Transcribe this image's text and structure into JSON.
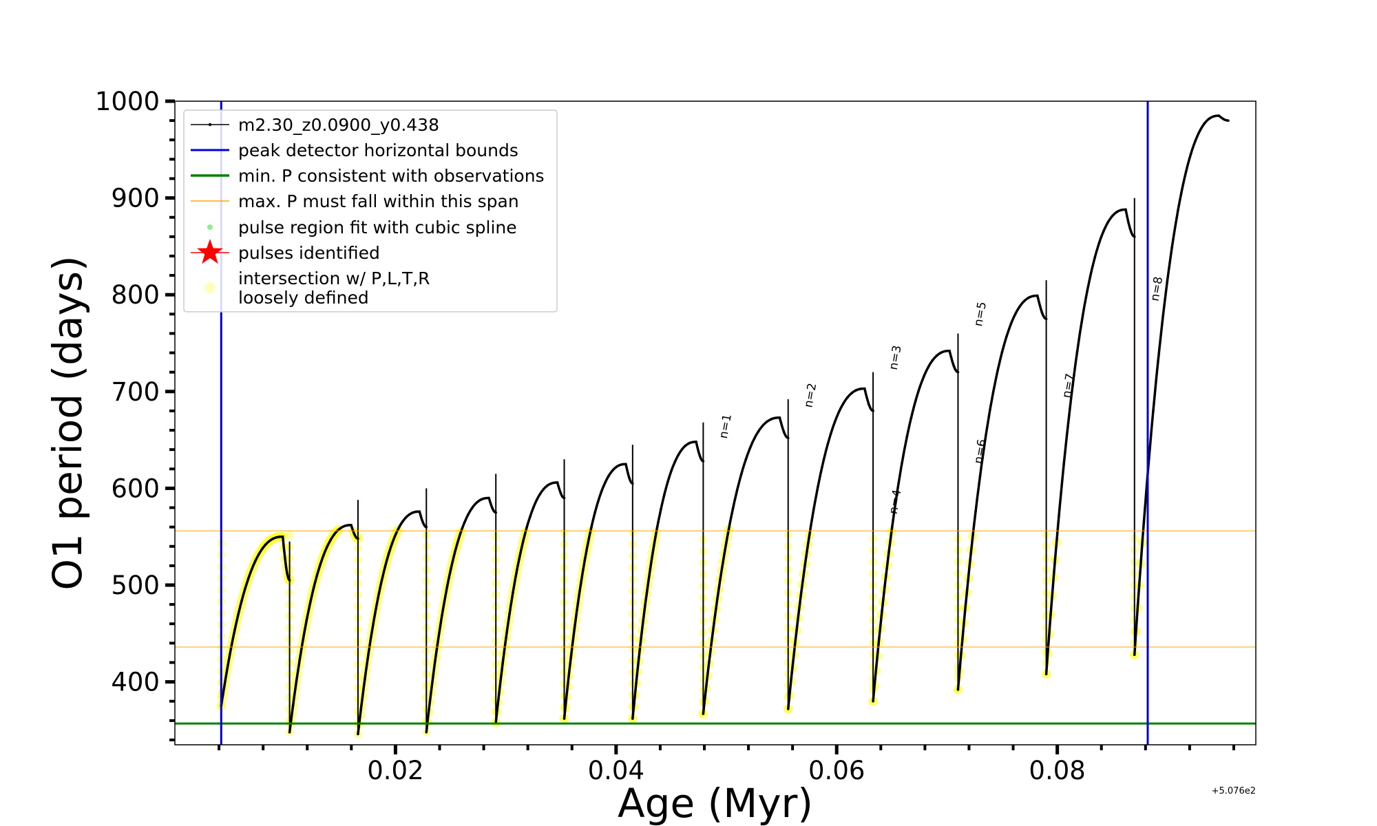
{
  "chart_data": {
    "type": "line",
    "xlabel": "Age (Myr)",
    "ylabel": "O1 period (days)",
    "x_offset_label": "+5.076e2",
    "xlim": [
      0.0,
      0.098
    ],
    "ylim": [
      335,
      1000
    ],
    "x_ticks": [
      {
        "value": 0.02,
        "label": "0.02"
      },
      {
        "value": 0.04,
        "label": "0.04"
      },
      {
        "value": 0.06,
        "label": "0.06"
      },
      {
        "value": 0.08,
        "label": "0.08"
      }
    ],
    "y_ticks": [
      {
        "value": 400,
        "label": "400"
      },
      {
        "value": 500,
        "label": "500"
      },
      {
        "value": 600,
        "label": "600"
      },
      {
        "value": 700,
        "label": "700"
      },
      {
        "value": 800,
        "label": "800"
      },
      {
        "value": 900,
        "label": "900"
      },
      {
        "value": 1000,
        "label": "1000"
      }
    ],
    "legend": {
      "position": "upper-left",
      "entries": [
        {
          "label": "m2.30_z0.0900_y0.438",
          "style": "black-line-dots"
        },
        {
          "label": "peak detector horizontal bounds",
          "style": "blue-line"
        },
        {
          "label": "min. P consistent with observations",
          "style": "green-line"
        },
        {
          "label": "max. P must fall within this span",
          "style": "orange-line"
        },
        {
          "label": "pulse region fit with cubic spline",
          "style": "green-dot"
        },
        {
          "label": "pulses identified",
          "style": "red-star"
        },
        {
          "label": "intersection w/ P,L,T,R",
          "label2": "loosely defined",
          "style": "yellow-dot"
        }
      ]
    },
    "vertical_lines": [
      {
        "x": 0.0042,
        "color": "#0000dd"
      },
      {
        "x": 0.0882,
        "color": "#0000dd"
      }
    ],
    "horizontal_lines": [
      {
        "y": 357,
        "color": "#008000",
        "width": 3
      },
      {
        "y": 436,
        "color": "#ffa500",
        "width": 1
      },
      {
        "y": 556,
        "color": "#ffa500",
        "width": 1
      }
    ],
    "series": [
      {
        "name": "m2.30_z0.0900_y0.438",
        "color": "#000000",
        "cycles": [
          {
            "x0": 0.0042,
            "x1": 0.0104,
            "y_start": 375,
            "y_peak": 550,
            "y_end": 505
          },
          {
            "x0": 0.0104,
            "x1": 0.0166,
            "y_start": 348,
            "y_peak": 562,
            "y_end": 548
          },
          {
            "x0": 0.0166,
            "x1": 0.0228,
            "y_start": 346,
            "y_peak": 576,
            "y_end": 560
          },
          {
            "x0": 0.0228,
            "x1": 0.0291,
            "y_start": 348,
            "y_peak": 590,
            "y_end": 575
          },
          {
            "x0": 0.0291,
            "x1": 0.0353,
            "y_start": 358,
            "y_peak": 606,
            "y_end": 590
          },
          {
            "x0": 0.0353,
            "x1": 0.0415,
            "y_start": 362,
            "y_peak": 625,
            "y_end": 605
          },
          {
            "x0": 0.0415,
            "x1": 0.0479,
            "y_start": 362,
            "y_peak": 648,
            "y_end": 628
          },
          {
            "x0": 0.0479,
            "x1": 0.0556,
            "y_start": 367,
            "y_peak": 673,
            "y_end": 652
          },
          {
            "x0": 0.0556,
            "x1": 0.0633,
            "y_start": 372,
            "y_peak": 703,
            "y_end": 680
          },
          {
            "x0": 0.0633,
            "x1": 0.071,
            "y_start": 380,
            "y_peak": 742,
            "y_end": 720
          },
          {
            "x0": 0.071,
            "x1": 0.079,
            "y_start": 392,
            "y_peak": 799,
            "y_end": 775
          },
          {
            "x0": 0.079,
            "x1": 0.087,
            "y_start": 408,
            "y_peak": 888,
            "y_end": 860
          },
          {
            "x0": 0.087,
            "x1": 0.0955,
            "y_start": 428,
            "y_peak": 985,
            "y_end": 980
          }
        ]
      }
    ],
    "pulse_annotations": [
      {
        "label": "n=1",
        "x": 0.0493,
        "y": 648
      },
      {
        "label": "n=2",
        "x": 0.057,
        "y": 680
      },
      {
        "label": "n=3",
        "x": 0.0647,
        "y": 719
      },
      {
        "label": "n=4",
        "x": 0.0647,
        "y": 570
      },
      {
        "label": "n=5",
        "x": 0.0724,
        "y": 764
      },
      {
        "label": "n=6",
        "x": 0.0724,
        "y": 622
      },
      {
        "label": "n=7",
        "x": 0.0804,
        "y": 690
      },
      {
        "label": "n=8",
        "x": 0.0884,
        "y": 790
      }
    ]
  }
}
